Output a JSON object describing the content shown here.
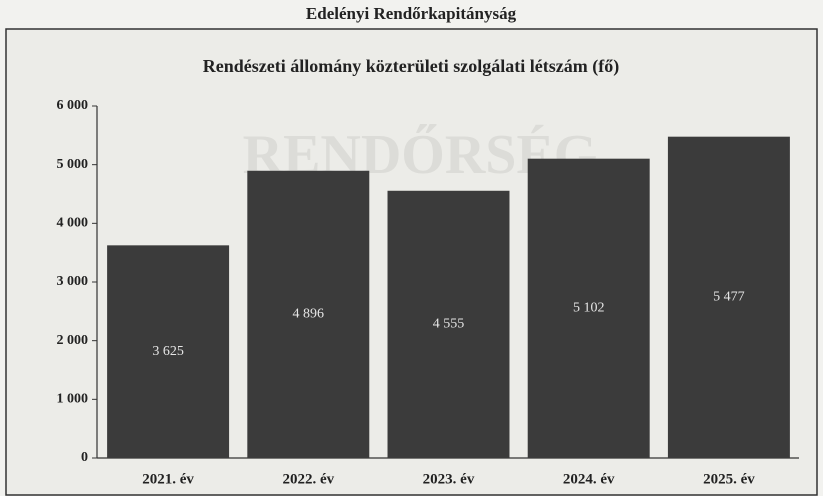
{
  "header": {
    "title": "Edelényi Rendőrkapitányság"
  },
  "chart_data": {
    "type": "bar",
    "title": "Rendészeti állomány közterületi szolgálati létszám (fő)",
    "watermark": "RENDŐRSÉG",
    "categories": [
      "2021. év",
      "2022. év",
      "2023. év",
      "2024. év",
      "2025. év"
    ],
    "values": [
      3625,
      4896,
      4555,
      5102,
      5477
    ],
    "value_labels": [
      "3 625",
      "4 896",
      "4 555",
      "5 102",
      "5 477"
    ],
    "color": "#3b3b3b",
    "ylim": [
      0,
      6000
    ],
    "yticks": [
      0,
      {
        "value": 1000,
        "label": "1 000"
      },
      {
        "value": 2000,
        "label": "2 000"
      },
      {
        "value": 3000,
        "label": "3 000"
      },
      {
        "value": 4000,
        "label": "4 000"
      },
      {
        "value": 5000,
        "label": "5 000"
      },
      {
        "value": 6000,
        "label": "6 000"
      }
    ]
  }
}
